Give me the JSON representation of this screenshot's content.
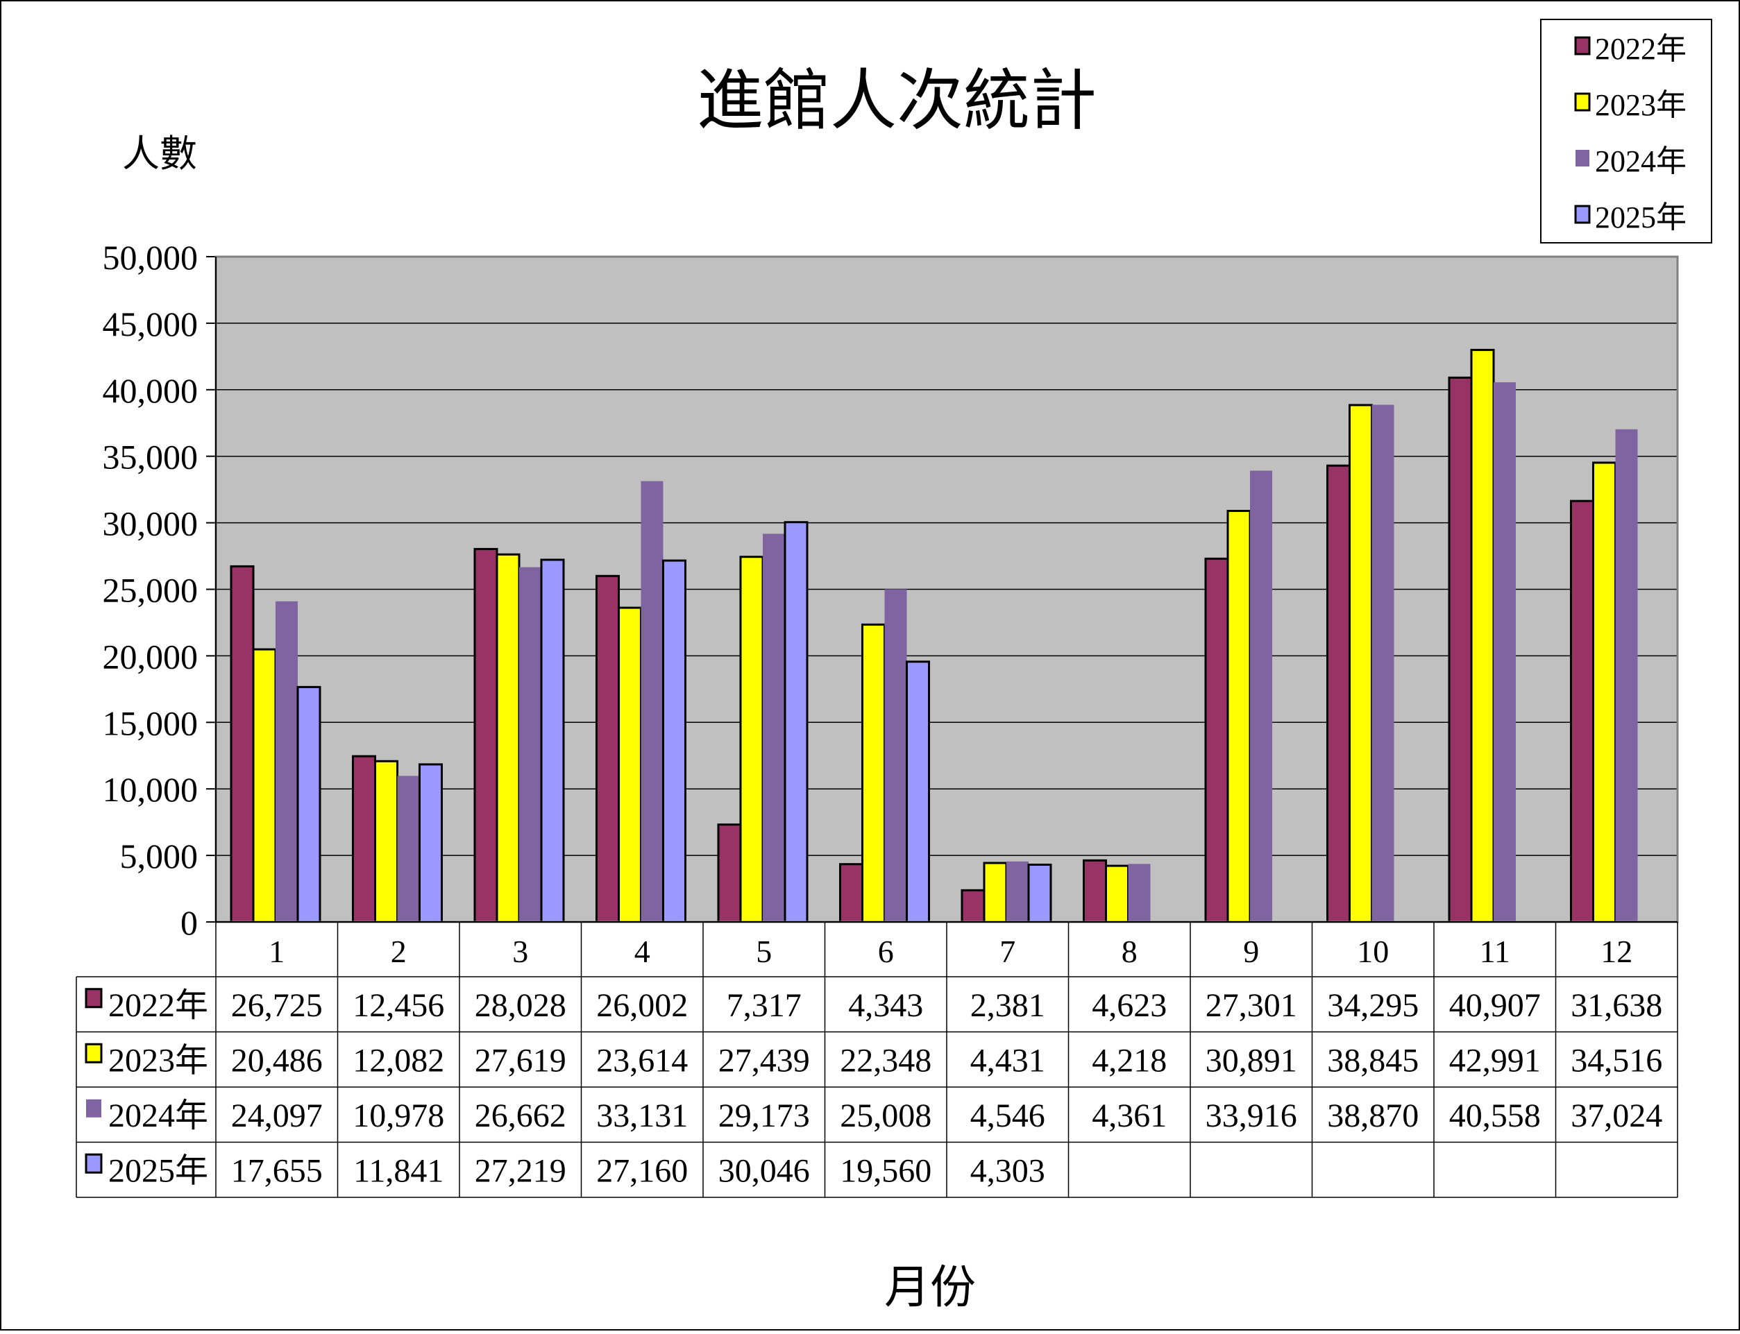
{
  "chart_data": {
    "type": "bar",
    "title": "進館人次統計",
    "ylabel": "人數",
    "xlabel": "月份",
    "ylim": [
      0,
      50000
    ],
    "yticks": [
      "0",
      "5,000",
      "10,000",
      "15,000",
      "20,000",
      "25,000",
      "30,000",
      "35,000",
      "40,000",
      "45,000",
      "50,000"
    ],
    "categories": [
      "1",
      "2",
      "3",
      "4",
      "5",
      "6",
      "7",
      "8",
      "9",
      "10",
      "11",
      "12"
    ],
    "grid": true,
    "legend": "top-right",
    "series": [
      {
        "name": "2022年",
        "color": "#993366",
        "outlined": true,
        "values": [
          26725,
          12456,
          28028,
          26002,
          7317,
          4343,
          2381,
          4623,
          27301,
          34295,
          40907,
          31638
        ],
        "labels": [
          "26,725",
          "12,456",
          "28,028",
          "26,002",
          "7,317",
          "4,343",
          "2,381",
          "4,623",
          "27,301",
          "34,295",
          "40,907",
          "31,638"
        ]
      },
      {
        "name": "2023年",
        "color": "#ffff00",
        "outlined": true,
        "values": [
          20486,
          12082,
          27619,
          23614,
          27439,
          22348,
          4431,
          4218,
          30891,
          38845,
          42991,
          34516
        ],
        "labels": [
          "20,486",
          "12,082",
          "27,619",
          "23,614",
          "27,439",
          "22,348",
          "4,431",
          "4,218",
          "30,891",
          "38,845",
          "42,991",
          "34,516"
        ]
      },
      {
        "name": "2024年",
        "color": "#8064a2",
        "outlined": false,
        "values": [
          24097,
          10978,
          26662,
          33131,
          29173,
          25008,
          4546,
          4361,
          33916,
          38870,
          40558,
          37024
        ],
        "labels": [
          "24,097",
          "10,978",
          "26,662",
          "33,131",
          "29,173",
          "25,008",
          "4,546",
          "4,361",
          "33,916",
          "38,870",
          "40,558",
          "37,024"
        ]
      },
      {
        "name": "2025年",
        "color": "#9999ff",
        "outlined": true,
        "values": [
          17655,
          11841,
          27219,
          27160,
          30046,
          19560,
          4303,
          null,
          null,
          null,
          null,
          null
        ],
        "labels": [
          "17,655",
          "11,841",
          "27,219",
          "27,160",
          "30,046",
          "19,560",
          "4,303",
          "",
          "",
          "",
          "",
          ""
        ]
      }
    ],
    "colors": {
      "plot_background": "#c0c0c0",
      "gridline": "#000000",
      "axis": "#808080"
    }
  }
}
